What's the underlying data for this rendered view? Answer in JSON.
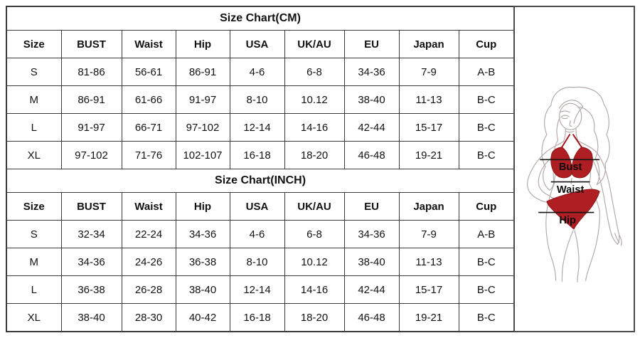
{
  "colors": {
    "bikini_red": "#ae1e23",
    "sketch_gray": "#b3a9a7",
    "table_border": "#3a3a3a"
  },
  "sections": [
    {
      "title": "Size Chart(CM)",
      "columns": [
        "Size",
        "BUST",
        "Waist",
        "Hip",
        "USA",
        "UK/AU",
        "EU",
        "Japan",
        "Cup"
      ],
      "rows": [
        [
          "S",
          "81-86",
          "56-61",
          "86-91",
          "4-6",
          "6-8",
          "34-36",
          "7-9",
          "A-B"
        ],
        [
          "M",
          "86-91",
          "61-66",
          "91-97",
          "8-10",
          "10.12",
          "38-40",
          "11-13",
          "B-C"
        ],
        [
          "L",
          "91-97",
          "66-71",
          "97-102",
          "12-14",
          "14-16",
          "42-44",
          "15-17",
          "B-C"
        ],
        [
          "XL",
          "97-102",
          "71-76",
          "102-107",
          "16-18",
          "18-20",
          "46-48",
          "19-21",
          "B-C"
        ]
      ]
    },
    {
      "title": "Size Chart(INCH)",
      "columns": [
        "Size",
        "BUST",
        "Waist",
        "Hip",
        "USA",
        "UK/AU",
        "EU",
        "Japan",
        "Cup"
      ],
      "rows": [
        [
          "S",
          "32-34",
          "22-24",
          "34-36",
          "4-6",
          "6-8",
          "34-36",
          "7-9",
          "A-B"
        ],
        [
          "M",
          "34-36",
          "24-26",
          "36-38",
          "8-10",
          "10.12",
          "38-40",
          "11-13",
          "B-C"
        ],
        [
          "L",
          "36-38",
          "26-28",
          "38-40",
          "12-14",
          "14-16",
          "42-44",
          "15-17",
          "B-C"
        ],
        [
          "XL",
          "38-40",
          "28-30",
          "40-42",
          "16-18",
          "18-20",
          "46-48",
          "19-21",
          "B-C"
        ]
      ]
    }
  ],
  "figure": {
    "bust_label": "Bust",
    "waist_label": "Waist",
    "hip_label": "Hip"
  }
}
